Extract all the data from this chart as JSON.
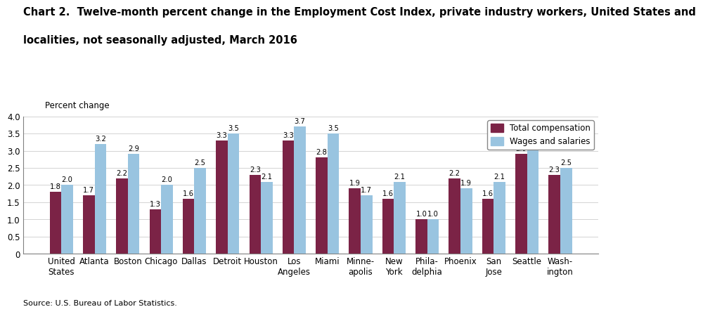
{
  "title_line1": "Chart 2.  Twelve-month percent change in the Employment Cost Index, private industry workers, United States and",
  "title_line2": "localities, not seasonally adjusted, March 2016",
  "ylabel": "Percent change",
  "source": "Source: U.S. Bureau of Labor Statistics.",
  "categories": [
    "United\nStates",
    "Atlanta",
    "Boston",
    "Chicago",
    "Dallas",
    "Detroit",
    "Houston",
    "Los\nAngeles",
    "Miami",
    "Minne-\napolis",
    "New\nYork",
    "Phila-\ndelphia",
    "Phoenix",
    "San\nJose",
    "Seattle",
    "Wash-\nington"
  ],
  "total_compensation": [
    1.8,
    1.7,
    2.2,
    1.3,
    1.6,
    3.3,
    2.3,
    3.3,
    2.8,
    1.9,
    1.6,
    1.0,
    2.2,
    1.6,
    2.9,
    2.3
  ],
  "wages_and_salaries": [
    2.0,
    3.2,
    2.9,
    2.0,
    2.5,
    3.5,
    2.1,
    3.7,
    3.5,
    1.7,
    2.1,
    1.0,
    1.9,
    2.1,
    3.5,
    2.5
  ],
  "color_total": "#7B2346",
  "color_wages": "#99C4E0",
  "ylim": [
    0,
    4.0
  ],
  "yticks": [
    0.0,
    0.5,
    1.0,
    1.5,
    2.0,
    2.5,
    3.0,
    3.5,
    4.0
  ],
  "ytick_labels": [
    "0",
    "0.5",
    "1.0",
    "1.5",
    "2.0",
    "2.5",
    "3.0",
    "3.5",
    "4.0"
  ],
  "legend_total": "Total compensation",
  "legend_wages": "Wages and salaries",
  "bar_width": 0.35,
  "label_fontsize": 7.2,
  "tick_fontsize": 8.5,
  "title_fontsize": 10.5
}
